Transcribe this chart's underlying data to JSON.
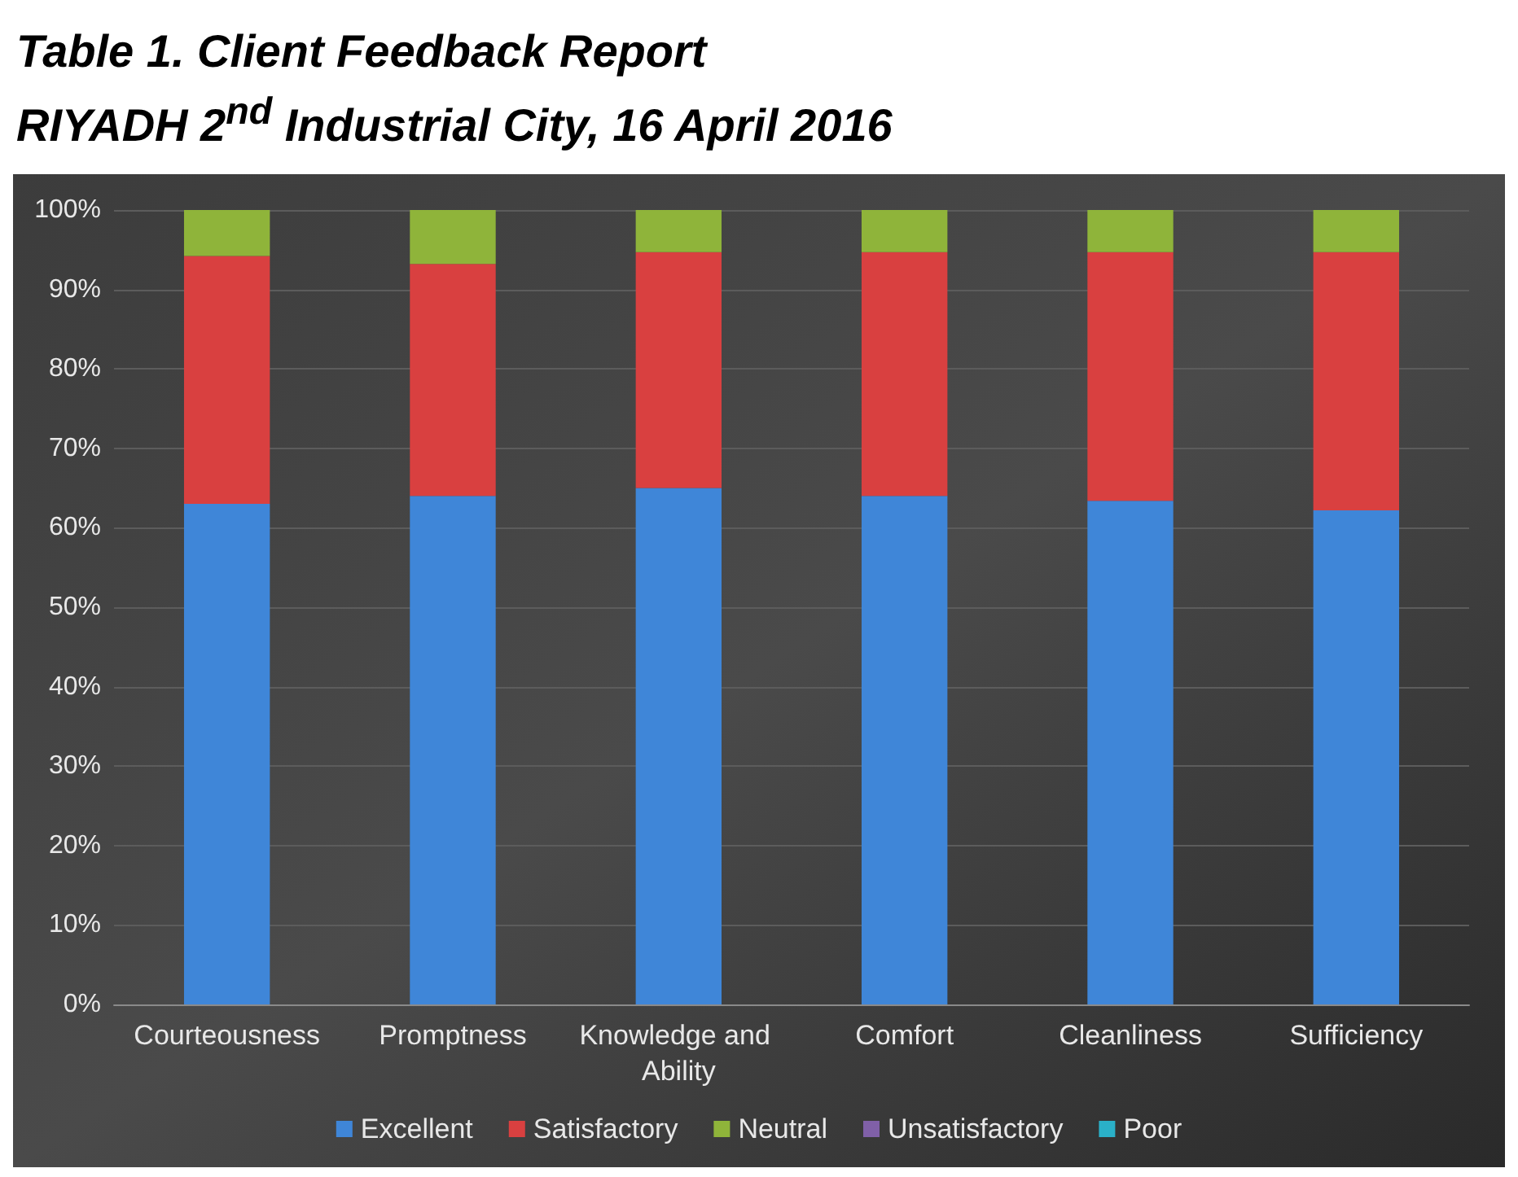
{
  "chart_data": {
    "type": "bar",
    "title": "Table 1. Client Feedback Report\nRIYADH 2$^{nd}$ Industrial City, 16 April 2016",
    "categories": [
      "Courteousness",
      "Promptness",
      "Knowledge and Ability",
      "Comfort",
      "Cleanliness",
      "Sufficiency"
    ],
    "series": [
      {
        "name": "Excellent",
        "color": "#3f86d8",
        "values": [
          63,
          64,
          65,
          64,
          63.4,
          62.2
        ]
      },
      {
        "name": "Satisfactory",
        "color": "#d94040",
        "values": [
          31.2,
          29.2,
          29.7,
          30.7,
          31.3,
          32.5
        ]
      },
      {
        "name": "Neutral",
        "color": "#8fb43a",
        "values": [
          5.8,
          6.8,
          5.3,
          5.3,
          5.3,
          5.3
        ]
      },
      {
        "name": "Unsatisfactory",
        "color": "#8060a8",
        "values": [
          0,
          0,
          0,
          0,
          0,
          0
        ]
      },
      {
        "name": "Poor",
        "color": "#2ab0c8",
        "values": [
          0,
          0,
          0,
          0,
          0,
          0
        ]
      }
    ],
    "stacked": true,
    "ylim": [
      0,
      100
    ],
    "yticks": [
      {
        "value": 0,
        "label": "0%"
      },
      {
        "value": 10,
        "label": "10%"
      },
      {
        "value": 20,
        "label": "20%"
      },
      {
        "value": 30,
        "label": "30%"
      },
      {
        "value": 40,
        "label": "40%"
      },
      {
        "value": 50,
        "label": "50%"
      },
      {
        "value": 60,
        "label": "60%"
      },
      {
        "value": 70,
        "label": "70%"
      },
      {
        "value": 80,
        "label": "80%"
      },
      {
        "value": 90,
        "label": "90%"
      },
      {
        "value": 100,
        "label": "100%"
      }
    ],
    "grid": "y",
    "legend": "bottom"
  }
}
